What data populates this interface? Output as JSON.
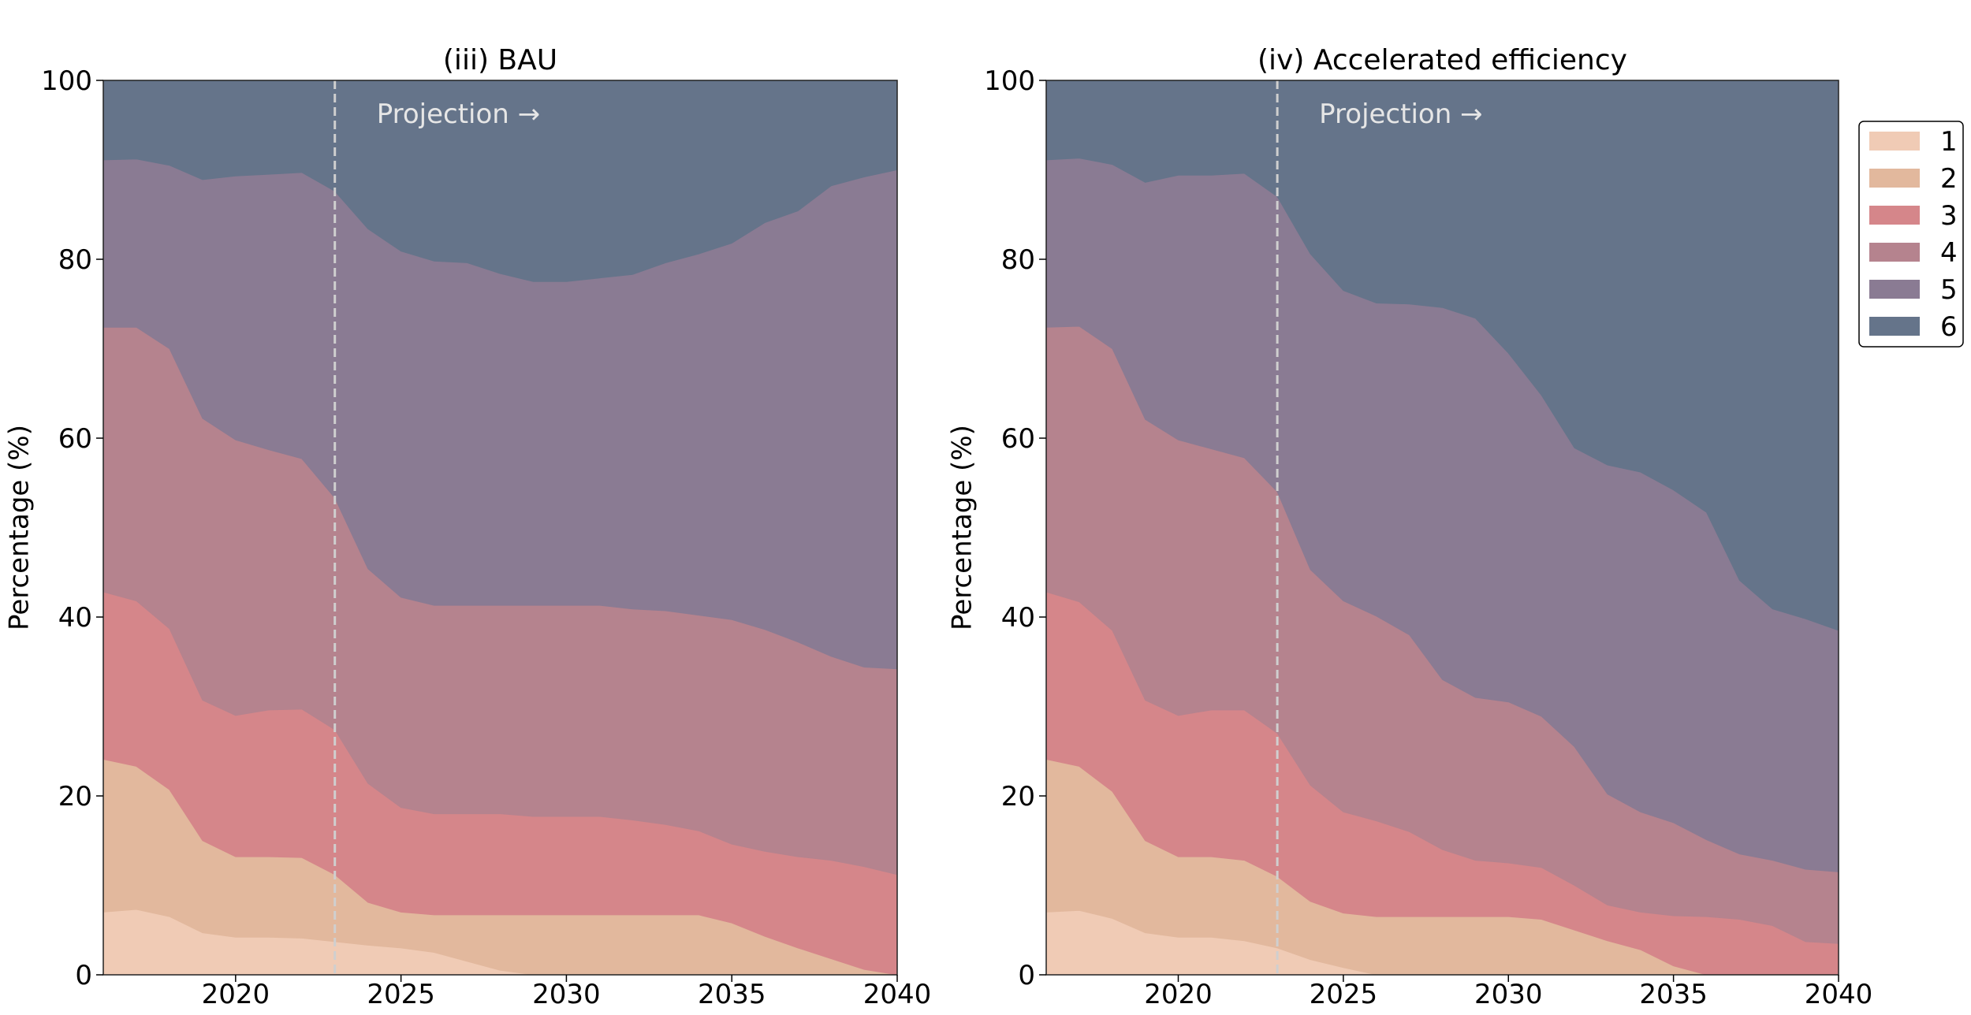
{
  "colors": {
    "1": "#f0cbb5",
    "2": "#e2b89d",
    "3": "#d5868a",
    "4": "#b5838e",
    "5": "#8a7b93",
    "6": "#65748a",
    "divider": "#cfcfcf"
  },
  "chart_data": [
    {
      "type": "area",
      "stacked": true,
      "title": "(iii) BAU",
      "xlabel": "",
      "ylabel": "Percentage (%)",
      "xlim": [
        2016,
        2040
      ],
      "ylim": [
        0,
        100
      ],
      "xticks": [
        2020,
        2025,
        2030,
        2035,
        2040
      ],
      "yticks": [
        0,
        20,
        40,
        60,
        80,
        100
      ],
      "projection_start": 2023,
      "annotation": "Projection →",
      "x": [
        2016,
        2017,
        2018,
        2019,
        2020,
        2021,
        2022,
        2023,
        2024,
        2025,
        2026,
        2027,
        2028,
        2029,
        2030,
        2031,
        2032,
        2033,
        2034,
        2035,
        2036,
        2037,
        2038,
        2039,
        2040
      ],
      "series": [
        {
          "name": "1",
          "values": [
            7,
            7.3,
            6.5,
            4.7,
            4.2,
            4.2,
            4.1,
            3.7,
            3.3,
            3,
            2.5,
            1.5,
            0.5,
            0,
            0,
            0,
            0,
            0,
            0,
            0,
            0,
            0,
            0,
            0,
            0
          ]
        },
        {
          "name": "2",
          "values": [
            17.1,
            16,
            14.2,
            10.3,
            9,
            9,
            9,
            7.5,
            4.8,
            4,
            4.2,
            5.2,
            6.2,
            6.7,
            6.7,
            6.7,
            6.7,
            6.7,
            6.7,
            5.8,
            4.3,
            3,
            1.8,
            0.6,
            0
          ]
        },
        {
          "name": "3",
          "values": [
            18.7,
            18.5,
            18,
            15.7,
            15.8,
            16.4,
            16.6,
            16.2,
            13.3,
            11.7,
            11.3,
            11.3,
            11.3,
            11,
            11,
            11,
            10.6,
            10.1,
            9.4,
            8.8,
            9.5,
            10.2,
            11,
            11.5,
            11.2
          ]
        },
        {
          "name": "4",
          "values": [
            29.6,
            30.6,
            31.3,
            31.5,
            30.8,
            29.1,
            28,
            25.9,
            24,
            23.5,
            23.3,
            23.3,
            23.3,
            23.6,
            23.6,
            23.6,
            23.6,
            23.9,
            24.1,
            25.1,
            24.8,
            24,
            22.8,
            22.3,
            23
          ]
        },
        {
          "name": "5",
          "values": [
            18.7,
            18.8,
            20.5,
            26.7,
            29.5,
            30.8,
            32,
            34.3,
            38,
            38.7,
            38.5,
            38.3,
            37.1,
            36.2,
            36.2,
            36.6,
            37.4,
            38.9,
            40.4,
            42.1,
            45.5,
            48.2,
            52.6,
            54.8,
            55.8
          ]
        },
        {
          "name": "6",
          "values": [
            8.9,
            8.8,
            9.5,
            11.1,
            10.7,
            10.5,
            10.3,
            12.4,
            16.6,
            19.1,
            20.2,
            20.4,
            21.6,
            22.5,
            22.5,
            22.1,
            21.7,
            20.4,
            19.4,
            18.2,
            15.9,
            14.6,
            11.8,
            10.8,
            10
          ]
        }
      ]
    },
    {
      "type": "area",
      "stacked": true,
      "title": "(iv) Accelerated efficiency",
      "xlabel": "",
      "ylabel": "Percentage (%)",
      "xlim": [
        2016,
        2040
      ],
      "ylim": [
        0,
        100
      ],
      "xticks": [
        2020,
        2025,
        2030,
        2035,
        2040
      ],
      "yticks": [
        0,
        20,
        40,
        60,
        80,
        100
      ],
      "projection_start": 2023,
      "annotation": "Projection →",
      "x": [
        2016,
        2017,
        2018,
        2019,
        2020,
        2021,
        2022,
        2023,
        2024,
        2025,
        2026,
        2027,
        2028,
        2029,
        2030,
        2031,
        2032,
        2033,
        2034,
        2035,
        2036,
        2037,
        2038,
        2039,
        2040
      ],
      "series": [
        {
          "name": "1",
          "values": [
            7,
            7.2,
            6.3,
            4.7,
            4.2,
            4.2,
            3.8,
            3,
            1.7,
            0.8,
            0,
            0,
            0,
            0,
            0,
            0,
            0,
            0,
            0,
            0,
            0,
            0,
            0,
            0,
            0
          ]
        },
        {
          "name": "2",
          "values": [
            17.1,
            16.1,
            14.2,
            10.3,
            9,
            9,
            9,
            8,
            6.5,
            6.1,
            6.5,
            6.5,
            6.5,
            6.5,
            6.5,
            6.2,
            5,
            3.8,
            2.8,
            1,
            0,
            0,
            0,
            0,
            0
          ]
        },
        {
          "name": "3",
          "values": [
            18.7,
            18.4,
            18,
            15.7,
            15.8,
            16.4,
            16.8,
            16,
            13,
            11.3,
            10.7,
            9.5,
            7.5,
            6.3,
            6,
            5.8,
            5,
            4,
            4.2,
            5.6,
            6.5,
            6.2,
            5.5,
            3.7,
            3.5
          ]
        },
        {
          "name": "4",
          "values": [
            29.6,
            30.8,
            31.5,
            31.4,
            30.8,
            29.2,
            28.2,
            27,
            24.1,
            23.6,
            22.9,
            22,
            19,
            18.2,
            18,
            16.9,
            15.5,
            12.4,
            11.2,
            10.4,
            8.6,
            7.3,
            7.3,
            8.1,
            8
          ]
        },
        {
          "name": "5",
          "values": [
            18.7,
            18.8,
            20.6,
            26.5,
            29.6,
            30.6,
            31.8,
            33,
            35.3,
            34.7,
            35,
            37,
            41.6,
            42.4,
            39,
            35.9,
            33.4,
            36.8,
            38,
            37.2,
            36.6,
            30.6,
            28.1,
            28,
            27
          ]
        },
        {
          "name": "6",
          "values": [
            8.9,
            8.7,
            9.4,
            11.4,
            10.6,
            10.6,
            10.4,
            13,
            19.4,
            23.5,
            24.9,
            25,
            25.4,
            26.6,
            30.5,
            35.2,
            41.1,
            43,
            43.8,
            45.8,
            48.3,
            55.9,
            59.1,
            60.2,
            61.5
          ]
        }
      ]
    }
  ],
  "legend": {
    "placement": "right",
    "entries": [
      "1",
      "2",
      "3",
      "4",
      "5",
      "6"
    ]
  }
}
